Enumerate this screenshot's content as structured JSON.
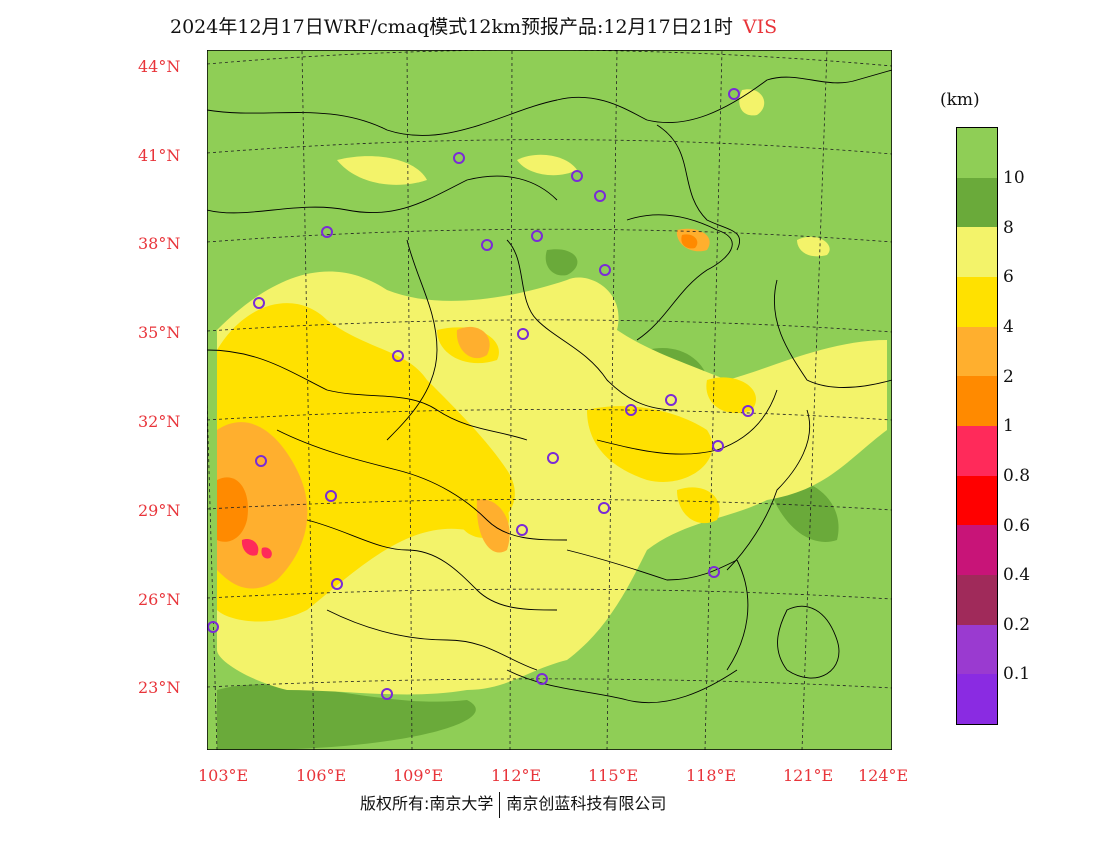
{
  "title": {
    "main": "2024年12月17日WRF/cmaq模式12km预报产品:12月17日21时",
    "variable": "VIS"
  },
  "axes": {
    "lat_labels": [
      "44°N",
      "41°N",
      "38°N",
      "35°N",
      "32°N",
      "29°N",
      "26°N",
      "23°N"
    ],
    "lon_labels": [
      "103°E",
      "106°E",
      "109°E",
      "112°E",
      "115°E",
      "118°E",
      "121°E",
      "124°E"
    ]
  },
  "legend": {
    "unit": "(km)",
    "ticks": [
      "10",
      "8",
      "6",
      "4",
      "2",
      "1",
      "0.8",
      "0.6",
      "0.4",
      "0.2",
      "0.1"
    ],
    "colors": [
      "#8fce56",
      "#6aaa3a",
      "#f3f36a",
      "#ffe100",
      "#ffaf2e",
      "#ff8a00",
      "#ff2a5a",
      "#ff0000",
      "#c81478",
      "#a02a5a",
      "#9a3ad0",
      "#8a2be2"
    ]
  },
  "colors": {
    "land_default": "#8fce56",
    "boundary": "#000000",
    "grid": "#222222",
    "station_marker": "#7a2bd6",
    "axis_labels": "#e8343a"
  },
  "footer": {
    "left": "版权所有:南京大学",
    "right": "南京创蓝科技有限公司"
  }
}
